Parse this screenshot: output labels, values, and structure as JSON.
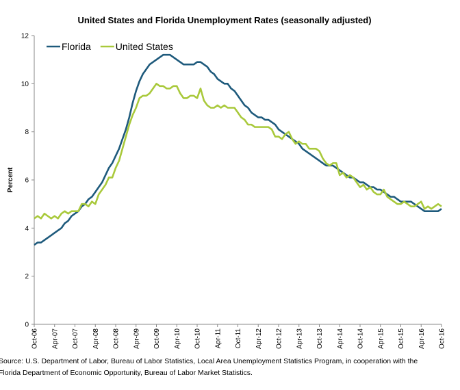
{
  "chart_data": {
    "type": "line",
    "title": "United States and Florida Unemployment Rates (seasonally adjusted)",
    "y_label": "Percent",
    "note": [
      "Source:  U.S. Department of Labor, Bureau of Labor Statistics, Local Area Unemployment Statistics Program, in cooperation with the",
      "Florida Department of Economic Opportunity, Bureau of Labor Market Statistics."
    ],
    "categories": [
      "Oct-06",
      null,
      null,
      null,
      null,
      null,
      "Apr-07",
      null,
      null,
      null,
      null,
      null,
      "Oct-07",
      null,
      null,
      null,
      null,
      null,
      "Apr-08",
      null,
      null,
      null,
      null,
      null,
      "Oct-08",
      null,
      null,
      null,
      null,
      null,
      "Apr-09",
      null,
      null,
      null,
      null,
      null,
      "Oct-09",
      null,
      null,
      null,
      null,
      null,
      "Apr-10",
      null,
      null,
      null,
      null,
      null,
      "Oct-10",
      null,
      null,
      null,
      null,
      null,
      "Apr-11",
      null,
      null,
      null,
      null,
      null,
      "Oct-11",
      null,
      null,
      null,
      null,
      null,
      "Apr-12",
      null,
      null,
      null,
      null,
      null,
      "Oct-12",
      null,
      null,
      null,
      null,
      null,
      "Apr-13",
      null,
      null,
      null,
      null,
      null,
      "Oct-13",
      null,
      null,
      null,
      null,
      null,
      "Apr-14",
      null,
      null,
      null,
      null,
      null,
      "Oct-14",
      null,
      null,
      null,
      null,
      null,
      "Apr-15",
      null,
      null,
      null,
      null,
      null,
      "Oct-15",
      null,
      null,
      null,
      null,
      null,
      "Apr-16",
      null,
      null,
      null,
      null,
      null,
      "Oct-16"
    ],
    "series": [
      {
        "name": "Florida",
        "color": "#1e5a7c",
        "values": [
          3.3,
          3.4,
          3.4,
          3.5,
          3.6,
          3.7,
          3.8,
          3.9,
          4.0,
          4.2,
          4.3,
          4.5,
          4.6,
          4.7,
          4.9,
          5.0,
          5.2,
          5.3,
          5.5,
          5.7,
          5.9,
          6.2,
          6.5,
          6.7,
          7.0,
          7.3,
          7.7,
          8.1,
          8.6,
          9.2,
          9.7,
          10.1,
          10.4,
          10.6,
          10.8,
          10.9,
          11.0,
          11.1,
          11.2,
          11.2,
          11.2,
          11.1,
          11.0,
          10.9,
          10.8,
          10.8,
          10.8,
          10.8,
          10.9,
          10.9,
          10.8,
          10.7,
          10.5,
          10.4,
          10.2,
          10.1,
          10.0,
          10.0,
          9.8,
          9.7,
          9.5,
          9.3,
          9.1,
          9.0,
          8.8,
          8.7,
          8.6,
          8.6,
          8.5,
          8.5,
          8.4,
          8.3,
          8.1,
          8.0,
          7.9,
          7.8,
          7.7,
          7.6,
          7.5,
          7.3,
          7.2,
          7.1,
          7.0,
          6.9,
          6.8,
          6.7,
          6.6,
          6.6,
          6.6,
          6.5,
          6.4,
          6.3,
          6.2,
          6.1,
          6.1,
          6.0,
          5.9,
          5.9,
          5.8,
          5.7,
          5.7,
          5.6,
          5.6,
          5.5,
          5.4,
          5.3,
          5.3,
          5.2,
          5.1,
          5.1,
          5.1,
          5.1,
          5.0,
          4.9,
          4.8,
          4.7,
          4.7,
          4.7,
          4.7,
          4.7,
          4.8
        ]
      },
      {
        "name": "United States",
        "color": "#a9c93b",
        "values": [
          4.4,
          4.5,
          4.4,
          4.6,
          4.5,
          4.4,
          4.5,
          4.4,
          4.6,
          4.7,
          4.6,
          4.7,
          4.7,
          4.7,
          5.0,
          5.0,
          4.9,
          5.1,
          5.0,
          5.4,
          5.6,
          5.8,
          6.1,
          6.1,
          6.5,
          6.8,
          7.3,
          7.8,
          8.3,
          8.7,
          9.0,
          9.4,
          9.5,
          9.5,
          9.6,
          9.8,
          10.0,
          9.9,
          9.9,
          9.8,
          9.8,
          9.9,
          9.9,
          9.6,
          9.4,
          9.4,
          9.5,
          9.5,
          9.4,
          9.8,
          9.3,
          9.1,
          9.0,
          9.0,
          9.1,
          9.0,
          9.1,
          9.0,
          9.0,
          9.0,
          8.8,
          8.6,
          8.5,
          8.3,
          8.3,
          8.2,
          8.2,
          8.2,
          8.2,
          8.2,
          8.1,
          7.8,
          7.8,
          7.7,
          7.9,
          8.0,
          7.7,
          7.5,
          7.6,
          7.5,
          7.5,
          7.3,
          7.3,
          7.3,
          7.2,
          6.9,
          6.7,
          6.6,
          6.7,
          6.7,
          6.2,
          6.3,
          6.1,
          6.2,
          6.1,
          5.9,
          5.7,
          5.8,
          5.6,
          5.7,
          5.5,
          5.4,
          5.4,
          5.6,
          5.3,
          5.2,
          5.1,
          5.0,
          5.0,
          5.1,
          5.0,
          4.9,
          4.9,
          5.0,
          5.1,
          4.8,
          4.9,
          4.8,
          4.9,
          5.0,
          4.9
        ]
      }
    ],
    "ylim": [
      0,
      12
    ],
    "yticks": [
      0,
      2,
      4,
      6,
      8,
      10,
      12
    ],
    "grid": false,
    "legend": "top-left"
  }
}
